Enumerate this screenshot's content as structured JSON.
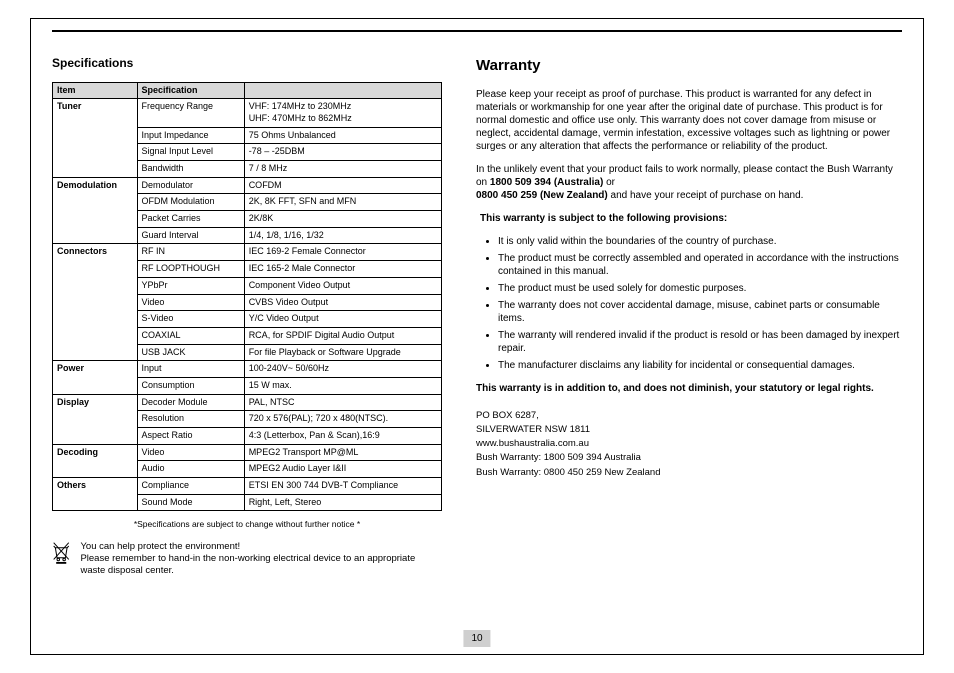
{
  "left": {
    "heading": "Specifications",
    "table": {
      "headers": [
        "Item",
        "Specification",
        ""
      ],
      "groups": [
        {
          "group": "Tuner",
          "rows": [
            [
              "Frequency Range",
              "VHF: 174MHz to 230MHz\nUHF: 470MHz to 862MHz"
            ],
            [
              "Input Impedance",
              "75 Ohms Unbalanced"
            ],
            [
              "Signal Input Level",
              "-78 – -25DBM"
            ],
            [
              "Bandwidth",
              "7 / 8 MHz"
            ]
          ]
        },
        {
          "group": "Demodulation",
          "rows": [
            [
              "Demodulator",
              "COFDM"
            ],
            [
              "OFDM Modulation",
              "2K, 8K FFT, SFN and MFN"
            ],
            [
              "Packet Carries",
              "2K/8K"
            ],
            [
              "Guard Interval",
              "1/4, 1/8, 1/16, 1/32"
            ]
          ]
        },
        {
          "group": "Connectors",
          "rows": [
            [
              "RF IN",
              "IEC 169-2 Female Connector"
            ],
            [
              "RF LOOPTHOUGH",
              "IEC 165-2 Male  Connector"
            ],
            [
              "YPbPr",
              "Component Video Output"
            ],
            [
              "Video",
              "CVBS Video Output"
            ],
            [
              "S-Video",
              "Y/C  Video Output"
            ],
            [
              "COAXIAL",
              "RCA, for SPDIF Digital Audio Output"
            ],
            [
              "USB JACK",
              "For file Playback or Software  Upgrade"
            ]
          ]
        },
        {
          "group": "Power",
          "rows": [
            [
              "Input",
              "100-240V~  50/60Hz"
            ],
            [
              "Consumption",
              "15 W max."
            ]
          ]
        },
        {
          "group": "Display",
          "rows": [
            [
              "Decoder Module",
              "PAL, NTSC"
            ],
            [
              "Resolution",
              "720 x 576(PAL); 720 x 480(NTSC)."
            ],
            [
              "Aspect Ratio",
              "4:3 (Letterbox, Pan & Scan),16:9"
            ]
          ]
        },
        {
          "group": "Decoding",
          "rows": [
            [
              "Video",
              "MPEG2 Transport MP@ML"
            ],
            [
              "Audio",
              "MPEG2 Audio Layer I&II"
            ]
          ]
        },
        {
          "group": "Others",
          "rows": [
            [
              "Compliance",
              "ETSI EN 300 744 DVB-T Compliance"
            ],
            [
              "Sound Mode",
              "Right, Left, Stereo"
            ]
          ]
        }
      ]
    },
    "footnote": "*Specifications are subject to change without further notice *",
    "env_line1": "You can help protect the environment!",
    "env_line2": "Please remember to hand-in the non-working electrical device to an appropriate waste disposal center."
  },
  "right": {
    "heading": "Warranty",
    "para1": "Please keep your receipt as proof of purchase. This product is warranted for any defect in materials or workmanship for one year after the original date of purchase. This product is for normal domestic and office use only. This warranty does not cover damage from misuse or neglect, accidental damage, vermin infestation, excessive voltages such as lightning or power surges or any alteration that affects the performance or reliability of the product.",
    "para2a": "In the unlikely event that your product fails to work normally, please contact the Bush Warranty on ",
    "para2b": "1800 509 394 (Australia)",
    "para2c": " or ",
    "para2d": "0800 450 259 (New Zealand)",
    "para2e": " and have your receipt of purchase on hand.",
    "provisions_heading": "This warranty is subject to the following provisions:",
    "bullets": [
      "It is only valid within the boundaries of the country of purchase.",
      "The product must be correctly assembled and operated in accordance with the instructions contained in this manual.",
      "The product must be used solely for domestic purposes.",
      "The warranty does not cover accidental damage, misuse, cabinet parts or consumable items.",
      "The warranty will rendered invalid if the product is resold or  has been damaged by inexpert repair.",
      "The manufacturer disclaims any liability for incidental or consequential damages."
    ],
    "statutory": "This warranty is in addition to, and does not diminish, your statutory or legal rights.",
    "address": [
      "PO BOX 6287,",
      "SILVERWATER NSW 1811",
      "www.bushaustralia.com.au",
      "Bush Warranty: 1800 509 394 Australia",
      "Bush Warranty: 0800 450 259 New Zealand"
    ]
  },
  "page_number": "10"
}
